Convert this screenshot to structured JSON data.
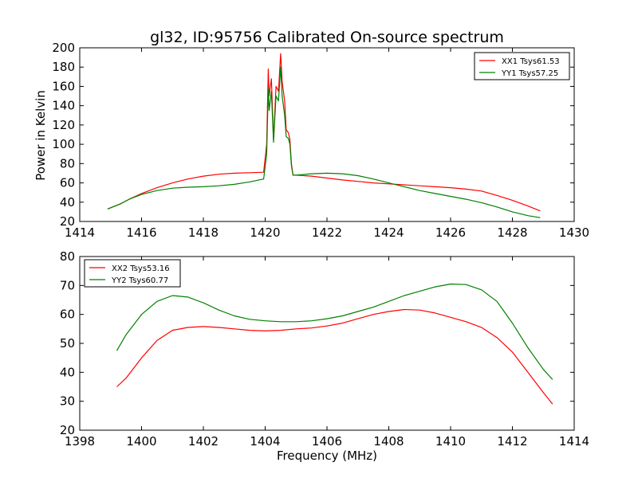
{
  "figure": {
    "title": "gl32, ID:95756 Calibrated On-source spectrum",
    "ylabel": "Power in Kelvin",
    "xlabel": "Frequency (MHz)"
  },
  "chart_data": [
    {
      "type": "line",
      "title": "gl32, ID:95756 Calibrated On-source spectrum",
      "xlabel": "",
      "ylabel": "Power in Kelvin",
      "xlim": [
        1414,
        1430
      ],
      "ylim": [
        20,
        200
      ],
      "xticks": [
        1414,
        1416,
        1418,
        1420,
        1422,
        1424,
        1426,
        1428,
        1430
      ],
      "yticks": [
        20,
        40,
        60,
        80,
        100,
        120,
        140,
        160,
        180,
        200
      ],
      "legend_position": "top-right",
      "series": [
        {
          "name": "XX1 Tsys61.53",
          "color": "#ff0000",
          "x": [
            1414.9,
            1415.3,
            1415.6,
            1416.0,
            1416.5,
            1417.0,
            1417.5,
            1418.0,
            1418.5,
            1419.0,
            1419.5,
            1419.95,
            1420.05,
            1420.1,
            1420.13,
            1420.2,
            1420.27,
            1420.35,
            1420.43,
            1420.5,
            1420.55,
            1420.63,
            1420.68,
            1420.75,
            1420.8,
            1420.85,
            1420.9,
            1421.0,
            1421.5,
            1422.0,
            1422.5,
            1423.0,
            1423.5,
            1424.0,
            1424.5,
            1425.0,
            1425.5,
            1426.0,
            1426.5,
            1427.0,
            1427.5,
            1428.0,
            1428.5,
            1428.9
          ],
          "values": [
            33,
            38,
            43,
            49,
            55,
            60,
            64,
            67,
            69,
            70,
            70.5,
            71,
            100,
            178,
            150,
            168,
            105,
            160,
            155,
            194,
            165,
            145,
            115,
            112,
            105,
            80,
            68,
            68,
            67,
            65,
            63,
            61.5,
            60,
            59,
            58,
            57,
            56,
            55,
            53.5,
            51.5,
            47,
            42,
            36,
            31
          ]
        },
        {
          "name": "YY1 Tsys57.25",
          "color": "#008000",
          "x": [
            1414.9,
            1415.3,
            1415.6,
            1416.0,
            1416.5,
            1417.0,
            1417.5,
            1418.0,
            1418.5,
            1419.0,
            1419.5,
            1419.95,
            1420.05,
            1420.1,
            1420.13,
            1420.2,
            1420.27,
            1420.35,
            1420.43,
            1420.5,
            1420.55,
            1420.63,
            1420.68,
            1420.75,
            1420.8,
            1420.85,
            1420.9,
            1421.0,
            1421.5,
            1422.0,
            1422.5,
            1423.0,
            1423.5,
            1424.0,
            1424.5,
            1425.0,
            1425.5,
            1426.0,
            1426.5,
            1427.0,
            1427.5,
            1428.0,
            1428.5,
            1428.9
          ],
          "values": [
            33,
            38,
            43,
            48,
            52,
            54.5,
            55.5,
            56,
            57,
            58.5,
            61,
            64,
            90,
            158,
            135,
            155,
            102,
            150,
            145,
            180,
            150,
            130,
            108,
            106,
            100,
            78,
            68,
            68,
            69.5,
            70,
            69.5,
            67.5,
            64,
            60,
            56,
            52,
            49,
            46,
            43,
            39.5,
            35,
            30,
            26,
            24
          ]
        }
      ]
    },
    {
      "type": "line",
      "title": "",
      "xlabel": "Frequency (MHz)",
      "ylabel": "",
      "xlim": [
        1398,
        1414
      ],
      "ylim": [
        20,
        80
      ],
      "xticks": [
        1398,
        1400,
        1402,
        1404,
        1406,
        1408,
        1410,
        1412,
        1414
      ],
      "yticks": [
        20,
        30,
        40,
        50,
        60,
        70,
        80
      ],
      "legend_position": "top-left",
      "series": [
        {
          "name": "XX2 Tsys53.16",
          "color": "#ff0000",
          "x": [
            1399.2,
            1399.5,
            1400.0,
            1400.5,
            1401.0,
            1401.5,
            1402.0,
            1402.5,
            1403.0,
            1403.5,
            1404.0,
            1404.5,
            1405.0,
            1405.5,
            1406.0,
            1406.5,
            1407.0,
            1407.5,
            1408.0,
            1408.5,
            1409.0,
            1409.5,
            1410.0,
            1410.5,
            1411.0,
            1411.5,
            1412.0,
            1412.5,
            1413.0,
            1413.3
          ],
          "values": [
            35,
            38,
            45,
            51,
            54.5,
            55.5,
            55.8,
            55.5,
            55,
            54.5,
            54.3,
            54.5,
            55,
            55.3,
            56,
            57,
            58.5,
            60,
            61,
            61.7,
            61.5,
            60.5,
            59,
            57.5,
            55.5,
            52,
            47,
            40,
            33,
            29
          ]
        },
        {
          "name": "YY2 Tsys60.77",
          "color": "#008000",
          "x": [
            1399.2,
            1399.5,
            1400.0,
            1400.5,
            1401.0,
            1401.5,
            1402.0,
            1402.5,
            1403.0,
            1403.5,
            1404.0,
            1404.5,
            1405.0,
            1405.5,
            1406.0,
            1406.5,
            1407.0,
            1407.5,
            1408.0,
            1408.5,
            1409.0,
            1409.5,
            1410.0,
            1410.5,
            1411.0,
            1411.5,
            1412.0,
            1412.5,
            1413.0,
            1413.3
          ],
          "values": [
            47.5,
            53,
            60,
            64.5,
            66.5,
            66,
            64,
            61.5,
            59.5,
            58.3,
            57.8,
            57.5,
            57.5,
            57.8,
            58.5,
            59.5,
            61,
            62.5,
            64.5,
            66.5,
            68,
            69.5,
            70.5,
            70.3,
            68.5,
            64.5,
            57,
            48.5,
            41,
            37.5
          ]
        }
      ]
    }
  ]
}
